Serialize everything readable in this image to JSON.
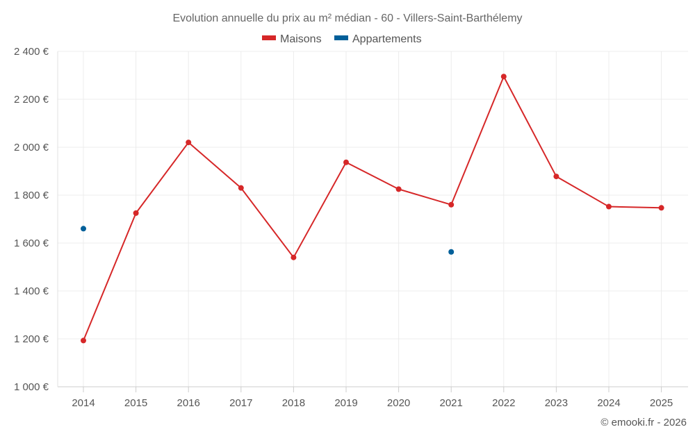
{
  "chart_data": {
    "type": "line",
    "title": "Evolution annuelle du prix au m² médian - 60 - Villers-Saint-Barthélemy",
    "categories": [
      "2014",
      "2015",
      "2016",
      "2017",
      "2018",
      "2019",
      "2020",
      "2021",
      "2022",
      "2023",
      "2024",
      "2025"
    ],
    "series": [
      {
        "name": "Maisons",
        "color": "#d62728",
        "values": [
          1193,
          1725,
          2020,
          1830,
          1540,
          1937,
          1825,
          1760,
          2295,
          1878,
          1752,
          1747
        ]
      },
      {
        "name": "Appartements",
        "color": "#005f99",
        "values": [
          1660,
          null,
          null,
          null,
          null,
          null,
          null,
          1563,
          null,
          null,
          null,
          null
        ]
      }
    ],
    "y_ticks": [
      "1 000 €",
      "1 200 €",
      "1 400 €",
      "1 600 €",
      "1 800 €",
      "2 000 €",
      "2 200 €",
      "2 400 €"
    ],
    "ylim": [
      1000,
      2400
    ],
    "grid": true,
    "legend_position": "top-center"
  },
  "credit": "© emooki.fr - 2026"
}
